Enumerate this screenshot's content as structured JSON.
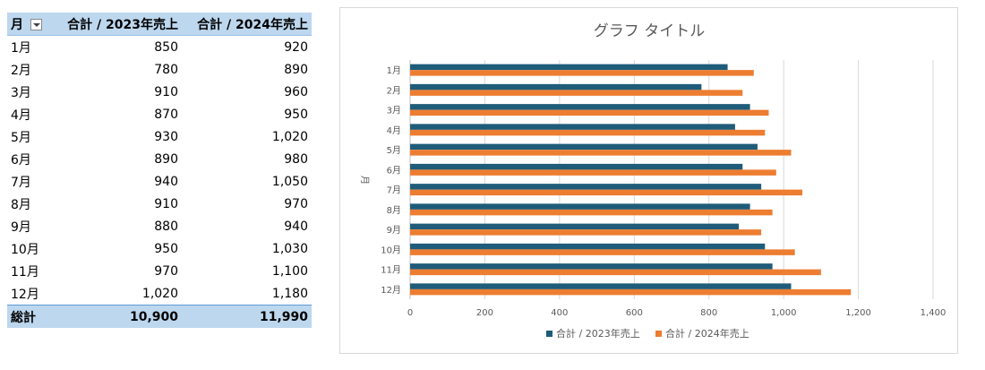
{
  "table": {
    "headers": [
      "月",
      "合計 / 2023年売上",
      "合計 / 2024年売上"
    ],
    "rows": [
      {
        "month": "1月",
        "v2023": "850",
        "v2024": "920"
      },
      {
        "month": "2月",
        "v2023": "780",
        "v2024": "890"
      },
      {
        "month": "3月",
        "v2023": "910",
        "v2024": "960"
      },
      {
        "month": "4月",
        "v2023": "870",
        "v2024": "950"
      },
      {
        "month": "5月",
        "v2023": "930",
        "v2024": "1,020"
      },
      {
        "month": "6月",
        "v2023": "890",
        "v2024": "980"
      },
      {
        "month": "7月",
        "v2023": "940",
        "v2024": "1,050"
      },
      {
        "month": "8月",
        "v2023": "910",
        "v2024": "970"
      },
      {
        "month": "9月",
        "v2023": "880",
        "v2024": "940"
      },
      {
        "month": "10月",
        "v2023": "950",
        "v2024": "1,030"
      },
      {
        "month": "11月",
        "v2023": "970",
        "v2024": "1,100"
      },
      {
        "month": "12月",
        "v2023": "1,020",
        "v2024": "1,180"
      }
    ],
    "total": {
      "label": "総計",
      "v2023": "10,900",
      "v2024": "11,990"
    },
    "colors": {
      "header_bg": "#bdd7ee"
    }
  },
  "chart_data": {
    "type": "bar",
    "orientation": "horizontal",
    "title": "グラフ タイトル",
    "ylabel": "月",
    "xlabel": "",
    "categories": [
      "1月",
      "2月",
      "3月",
      "4月",
      "5月",
      "6月",
      "7月",
      "8月",
      "9月",
      "10月",
      "11月",
      "12月"
    ],
    "series": [
      {
        "name": "合計 / 2023年売上",
        "color": "#1f5c7a",
        "values": [
          850,
          780,
          910,
          870,
          930,
          890,
          940,
          910,
          880,
          950,
          970,
          1020
        ]
      },
      {
        "name": "合計 / 2024年売上",
        "color": "#ed7d31",
        "values": [
          920,
          890,
          960,
          950,
          1020,
          980,
          1050,
          970,
          940,
          1030,
          1100,
          1180
        ]
      }
    ],
    "xlim": [
      0,
      1400
    ],
    "xticks": [
      0,
      200,
      400,
      600,
      800,
      1000,
      1200,
      1400
    ],
    "xtick_labels": [
      "0",
      "200",
      "400",
      "600",
      "800",
      "1,000",
      "1,200",
      "1,400"
    ],
    "grid": true,
    "legend": "bottom"
  }
}
